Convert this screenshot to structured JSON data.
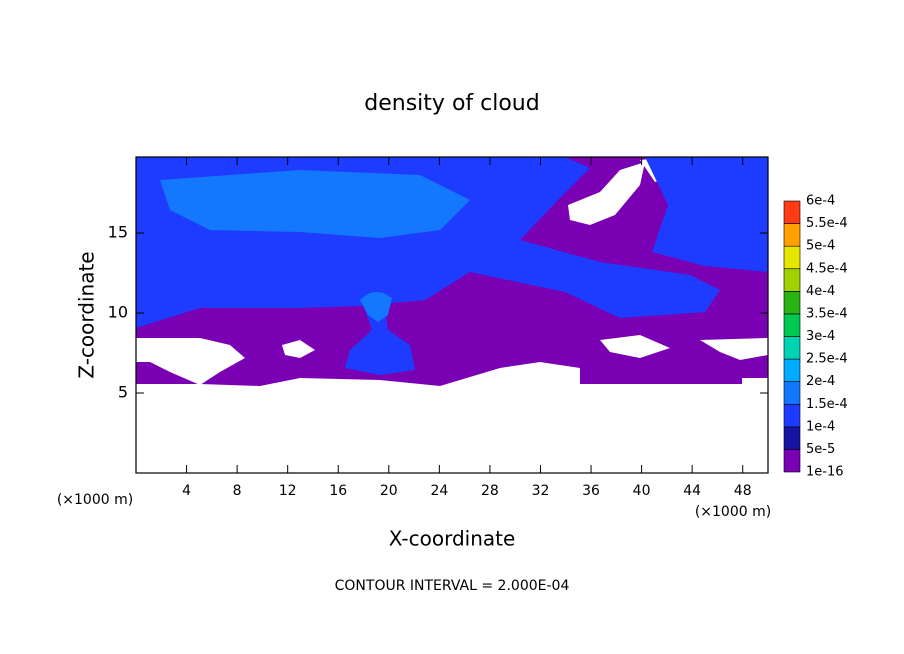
{
  "chart_data": {
    "type": "contour",
    "title": "density of cloud",
    "xlabel": "X-coordinate",
    "ylabel": "Z-coordinate",
    "y_unit": "(×1000 m)",
    "x_unit": "(×1000 m)",
    "annotation": "CONTOUR INTERVAL = 2.000E-04",
    "xlim": [
      0,
      50
    ],
    "xticks": [
      4,
      8,
      12,
      16,
      20,
      24,
      28,
      32,
      36,
      40,
      44,
      48
    ],
    "ylim": [
      0,
      19.75
    ],
    "yticks": [
      5,
      10,
      15
    ],
    "colorbar": {
      "levels": [
        1e-16,
        {
          "value": 5e-05,
          "label": "5e-5"
        },
        {
          "value": 0.0001,
          "label": "1e-4"
        },
        {
          "value": 0.00015,
          "label": "1.5e-4"
        },
        {
          "value": 0.0002,
          "label": "2e-4"
        },
        {
          "value": 0.00025,
          "label": "2.5e-4"
        },
        {
          "value": 0.0003,
          "label": "3e-4"
        },
        {
          "value": 0.00035,
          "label": "3.5e-4"
        },
        {
          "value": 0.0004,
          "label": "4e-4"
        },
        {
          "value": 0.00045,
          "label": "4.5e-4"
        },
        {
          "value": 0.0005,
          "label": "5e-4"
        },
        {
          "value": 0.00055,
          "label": "5.5e-4"
        },
        {
          "value": 0.0006,
          "label": "6e-4"
        }
      ],
      "colors": [
        "#7a00b4",
        "#1414a0",
        "#1e3cff",
        "#1478ff",
        "#00aaff",
        "#00d2b4",
        "#00c850",
        "#28b414",
        "#a0d200",
        "#e6e600",
        "#ffa000",
        "#ff3c14"
      ]
    }
  }
}
